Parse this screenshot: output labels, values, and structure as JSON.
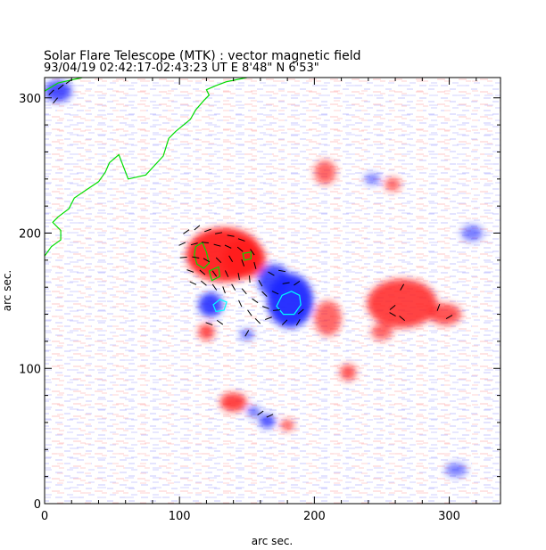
{
  "chart_data": {
    "type": "heatmap",
    "title": "Solar Flare Telescope (MTK) : vector magnetic field",
    "subtitle": "93/04/19  02:42:17-02:43:23 UT     E 8'48\"  N 6'53\"",
    "xlabel": "arc sec.",
    "ylabel": "arc sec.",
    "xlim": [
      0,
      338
    ],
    "ylim": [
      0,
      315
    ],
    "x_ticks": [
      0,
      100,
      200,
      300
    ],
    "y_ticks": [
      0,
      100,
      200,
      300
    ],
    "x_tick_labels": [
      "0",
      "100",
      "200",
      "300"
    ],
    "y_tick_labels": [
      "0",
      "100",
      "200",
      "300"
    ],
    "colormap": {
      "positive": "#ff1e1e",
      "negative": "#1e28ff",
      "background": "#ffffff"
    },
    "regions": [
      {
        "polarity": "positive",
        "x": 133,
        "y": 184,
        "rx": 28,
        "ry": 20,
        "strength": 1.0
      },
      {
        "polarity": "positive",
        "x": 148,
        "y": 181,
        "rx": 16,
        "ry": 14,
        "strength": 0.9
      },
      {
        "polarity": "positive",
        "x": 120,
        "y": 127,
        "rx": 6,
        "ry": 6,
        "strength": 0.8
      },
      {
        "polarity": "positive",
        "x": 210,
        "y": 137,
        "rx": 10,
        "ry": 13,
        "strength": 0.6
      },
      {
        "polarity": "positive",
        "x": 208,
        "y": 245,
        "rx": 8,
        "ry": 9,
        "strength": 0.6
      },
      {
        "polarity": "positive",
        "x": 265,
        "y": 148,
        "rx": 26,
        "ry": 18,
        "strength": 0.85
      },
      {
        "polarity": "positive",
        "x": 297,
        "y": 140,
        "rx": 12,
        "ry": 8,
        "strength": 0.7
      },
      {
        "polarity": "positive",
        "x": 258,
        "y": 236,
        "rx": 6,
        "ry": 5,
        "strength": 0.6
      },
      {
        "polarity": "positive",
        "x": 140,
        "y": 75,
        "rx": 10,
        "ry": 7,
        "strength": 0.85
      },
      {
        "polarity": "positive",
        "x": 225,
        "y": 97,
        "rx": 6,
        "ry": 6,
        "strength": 0.75
      },
      {
        "polarity": "positive",
        "x": 180,
        "y": 58,
        "rx": 5,
        "ry": 4,
        "strength": 0.7
      },
      {
        "polarity": "positive",
        "x": 250,
        "y": 127,
        "rx": 8,
        "ry": 6,
        "strength": 0.6
      },
      {
        "polarity": "negative",
        "x": 182,
        "y": 150,
        "rx": 17,
        "ry": 20,
        "strength": 1.0
      },
      {
        "polarity": "negative",
        "x": 170,
        "y": 165,
        "rx": 12,
        "ry": 12,
        "strength": 0.85
      },
      {
        "polarity": "negative",
        "x": 123,
        "y": 147,
        "rx": 9,
        "ry": 9,
        "strength": 0.9
      },
      {
        "polarity": "negative",
        "x": 165,
        "y": 61,
        "rx": 6,
        "ry": 5,
        "strength": 0.8
      },
      {
        "polarity": "negative",
        "x": 155,
        "y": 68,
        "rx": 5,
        "ry": 4,
        "strength": 0.6
      },
      {
        "polarity": "negative",
        "x": 150,
        "y": 125,
        "rx": 5,
        "ry": 4,
        "strength": 0.6
      },
      {
        "polarity": "negative",
        "x": 243,
        "y": 240,
        "rx": 6,
        "ry": 4,
        "strength": 0.5
      },
      {
        "polarity": "negative",
        "x": 317,
        "y": 200,
        "rx": 8,
        "ry": 6,
        "strength": 0.5
      },
      {
        "polarity": "negative",
        "x": 305,
        "y": 25,
        "rx": 8,
        "ry": 5,
        "strength": 0.5
      },
      {
        "polarity": "negative",
        "x": 10,
        "y": 305,
        "rx": 10,
        "ry": 8,
        "strength": 0.8
      }
    ],
    "contours": [
      {
        "color": "#00dd00",
        "closed": false,
        "points": [
          [
            0,
            183
          ],
          [
            5,
            190
          ],
          [
            12,
            195
          ],
          [
            12,
            202
          ],
          [
            6,
            208
          ],
          [
            10,
            212
          ],
          [
            18,
            218
          ],
          [
            22,
            226
          ],
          [
            28,
            230
          ],
          [
            40,
            238
          ],
          [
            45,
            245
          ],
          [
            48,
            252
          ],
          [
            55,
            258
          ],
          [
            62,
            240
          ],
          [
            75,
            243
          ],
          [
            88,
            257
          ],
          [
            92,
            270
          ],
          [
            97,
            275
          ],
          [
            108,
            284
          ],
          [
            112,
            291
          ],
          [
            118,
            298
          ],
          [
            122,
            302
          ],
          [
            120,
            306
          ],
          [
            127,
            309
          ],
          [
            135,
            312
          ],
          [
            150,
            315
          ]
        ]
      },
      {
        "color": "#00dd00",
        "closed": false,
        "points": [
          [
            0,
            305
          ],
          [
            10,
            311
          ],
          [
            28,
            315
          ]
        ]
      },
      {
        "color": "#00dd00",
        "closed": true,
        "points": [
          [
            112,
            190
          ],
          [
            117,
            193
          ],
          [
            120,
            186
          ],
          [
            122,
            178
          ],
          [
            118,
            174
          ],
          [
            113,
            177
          ],
          [
            111,
            184
          ]
        ]
      },
      {
        "color": "#00dd00",
        "closed": true,
        "points": [
          [
            122,
            172
          ],
          [
            129,
            175
          ],
          [
            130,
            168
          ],
          [
            124,
            165
          ]
        ]
      },
      {
        "color": "#00dd00",
        "closed": true,
        "points": [
          [
            147,
            185
          ],
          [
            153,
            186
          ],
          [
            153,
            181
          ],
          [
            148,
            180
          ]
        ]
      },
      {
        "color": "#00ffff",
        "closed": true,
        "points": [
          [
            172,
            146
          ],
          [
            176,
            154
          ],
          [
            183,
            157
          ],
          [
            189,
            154
          ],
          [
            190,
            147
          ],
          [
            185,
            140
          ],
          [
            177,
            140
          ]
        ]
      },
      {
        "color": "#00ffff",
        "closed": true,
        "points": [
          [
            125,
            147
          ],
          [
            130,
            151
          ],
          [
            135,
            149
          ],
          [
            133,
            143
          ],
          [
            127,
            142
          ]
        ]
      }
    ],
    "vectors": [
      {
        "x": 105,
        "y": 201,
        "angle": 35
      },
      {
        "x": 113,
        "y": 204,
        "angle": 40
      },
      {
        "x": 121,
        "y": 202,
        "angle": 20
      },
      {
        "x": 129,
        "y": 200,
        "angle": 10
      },
      {
        "x": 138,
        "y": 198,
        "angle": -10
      },
      {
        "x": 146,
        "y": 195,
        "angle": -20
      },
      {
        "x": 102,
        "y": 192,
        "angle": 25
      },
      {
        "x": 111,
        "y": 192,
        "angle": 15
      },
      {
        "x": 119,
        "y": 193,
        "angle": -5
      },
      {
        "x": 128,
        "y": 191,
        "angle": -15
      },
      {
        "x": 136,
        "y": 190,
        "angle": -25
      },
      {
        "x": 145,
        "y": 188,
        "angle": -40
      },
      {
        "x": 154,
        "y": 186,
        "angle": -55
      },
      {
        "x": 103,
        "y": 182,
        "angle": 5
      },
      {
        "x": 112,
        "y": 182,
        "angle": -10
      },
      {
        "x": 120,
        "y": 180,
        "angle": -30
      },
      {
        "x": 129,
        "y": 180,
        "angle": -45
      },
      {
        "x": 138,
        "y": 181,
        "angle": -60
      },
      {
        "x": 147,
        "y": 178,
        "angle": -70
      },
      {
        "x": 156,
        "y": 176,
        "angle": -75
      },
      {
        "x": 108,
        "y": 172,
        "angle": -20
      },
      {
        "x": 117,
        "y": 171,
        "angle": -40
      },
      {
        "x": 126,
        "y": 170,
        "angle": -55
      },
      {
        "x": 135,
        "y": 170,
        "angle": -65
      },
      {
        "x": 144,
        "y": 168,
        "angle": -80
      },
      {
        "x": 152,
        "y": 166,
        "angle": -85
      },
      {
        "x": 160,
        "y": 163,
        "angle": -60
      },
      {
        "x": 168,
        "y": 170,
        "angle": -30
      },
      {
        "x": 176,
        "y": 172,
        "angle": -10
      },
      {
        "x": 163,
        "y": 155,
        "angle": -45
      },
      {
        "x": 171,
        "y": 156,
        "angle": -25
      },
      {
        "x": 179,
        "y": 163,
        "angle": 10
      },
      {
        "x": 187,
        "y": 163,
        "angle": 35
      },
      {
        "x": 164,
        "y": 145,
        "angle": -20
      },
      {
        "x": 172,
        "y": 143,
        "angle": 5
      },
      {
        "x": 190,
        "y": 142,
        "angle": 40
      },
      {
        "x": 166,
        "y": 137,
        "angle": 20
      },
      {
        "x": 178,
        "y": 134,
        "angle": 45
      },
      {
        "x": 188,
        "y": 134,
        "angle": 60
      },
      {
        "x": 156,
        "y": 150,
        "angle": -35
      },
      {
        "x": 148,
        "y": 157,
        "angle": -50
      },
      {
        "x": 140,
        "y": 160,
        "angle": -60
      },
      {
        "x": 133,
        "y": 158,
        "angle": -70
      },
      {
        "x": 126,
        "y": 160,
        "angle": -55
      },
      {
        "x": 118,
        "y": 163,
        "angle": -40
      },
      {
        "x": 110,
        "y": 163,
        "angle": -25
      },
      {
        "x": 145,
        "y": 148,
        "angle": -65
      },
      {
        "x": 152,
        "y": 141,
        "angle": -55
      },
      {
        "x": 158,
        "y": 135,
        "angle": -45
      },
      {
        "x": 122,
        "y": 133,
        "angle": -20
      },
      {
        "x": 130,
        "y": 134,
        "angle": -35
      },
      {
        "x": 150,
        "y": 126,
        "angle": 60
      },
      {
        "x": 160,
        "y": 67,
        "angle": 35
      },
      {
        "x": 167,
        "y": 65,
        "angle": 25
      },
      {
        "x": 265,
        "y": 160,
        "angle": 60
      },
      {
        "x": 258,
        "y": 145,
        "angle": 40
      },
      {
        "x": 258,
        "y": 140,
        "angle": -30
      },
      {
        "x": 265,
        "y": 137,
        "angle": -40
      },
      {
        "x": 292,
        "y": 145,
        "angle": 70
      },
      {
        "x": 300,
        "y": 138,
        "angle": 30
      },
      {
        "x": 5,
        "y": 304,
        "angle": 45
      },
      {
        "x": 12,
        "y": 308,
        "angle": 40
      },
      {
        "x": 8,
        "y": 298,
        "angle": 50
      },
      {
        "x": 18,
        "y": 312,
        "angle": 35
      }
    ]
  }
}
